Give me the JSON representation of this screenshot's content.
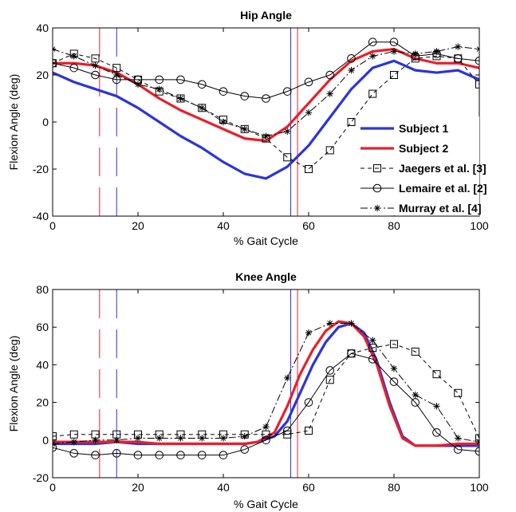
{
  "chart_data": [
    {
      "type": "line",
      "title": "Hip Angle",
      "xlabel": "% Gait Cycle",
      "ylabel": "Flexion Angle (deg)",
      "xlim": [
        0,
        100
      ],
      "ylim": [
        -40,
        40
      ],
      "xticks": [
        0,
        20,
        40,
        60,
        80,
        100
      ],
      "yticks": [
        -40,
        -20,
        0,
        20,
        40
      ],
      "vlines": [
        {
          "x": 11,
          "color": "#e8202a",
          "style": "dashed"
        },
        {
          "x": 15,
          "color": "#2b35d8",
          "style": "dashed"
        },
        {
          "x": 55.8,
          "color": "#2b35d8",
          "style": "solid"
        },
        {
          "x": 57.4,
          "color": "#e8202a",
          "style": "solid"
        }
      ],
      "series": [
        {
          "name": "Subject 1",
          "color": "#2b35d8",
          "marker": "none",
          "dash": "solid",
          "x": [
            0,
            5,
            10,
            15,
            20,
            25,
            30,
            35,
            40,
            45,
            50,
            55,
            60,
            65,
            70,
            75,
            80,
            85,
            90,
            95,
            100
          ],
          "y": [
            21,
            17,
            14,
            11,
            6,
            0,
            -6,
            -11,
            -17,
            -22,
            -24,
            -19,
            -10,
            2,
            14,
            23,
            26,
            22,
            21,
            22,
            18
          ]
        },
        {
          "name": "Subject 2",
          "color": "#e8202a",
          "marker": "none",
          "dash": "solid",
          "x": [
            0,
            5,
            10,
            15,
            20,
            25,
            30,
            35,
            40,
            45,
            50,
            55,
            60,
            65,
            70,
            75,
            80,
            85,
            90,
            95,
            100
          ],
          "y": [
            25,
            25,
            24,
            21,
            16,
            10,
            5,
            1,
            -3,
            -7,
            -8,
            -2,
            8,
            18,
            26,
            30,
            31,
            27,
            25,
            25,
            23
          ]
        },
        {
          "name": "Jaegers et al. [3]",
          "color": "#000000",
          "marker": "square",
          "dash": "dashed",
          "x": [
            0,
            5,
            10,
            15,
            20,
            25,
            30,
            35,
            40,
            45,
            50,
            55,
            60,
            65,
            70,
            75,
            80,
            85,
            90,
            95,
            100
          ],
          "y": [
            25,
            29,
            27,
            23,
            18,
            13,
            10,
            6,
            1,
            -3,
            -7,
            -15,
            -20,
            -12,
            0,
            12,
            20,
            27,
            28,
            27,
            16
          ]
        },
        {
          "name": "Lemaire et al. [2]",
          "color": "#000000",
          "marker": "circle",
          "dash": "solid",
          "x": [
            0,
            5,
            10,
            15,
            20,
            25,
            30,
            35,
            40,
            45,
            50,
            55,
            60,
            65,
            70,
            75,
            80,
            85,
            90,
            95,
            100
          ],
          "y": [
            25,
            23,
            20,
            18,
            18,
            18,
            18,
            16,
            13,
            11,
            10,
            13,
            17,
            20,
            27,
            34,
            34,
            28,
            29,
            27,
            26
          ]
        },
        {
          "name": "Murray et al. [4]",
          "color": "#000000",
          "marker": "star",
          "dash": "dashdot",
          "x": [
            0,
            5,
            10,
            15,
            20,
            25,
            30,
            35,
            40,
            45,
            50,
            55,
            60,
            65,
            70,
            75,
            80,
            85,
            90,
            95,
            100
          ],
          "y": [
            31,
            28,
            24,
            20,
            16,
            14,
            10,
            6,
            0,
            -3,
            -6,
            -4,
            4,
            12,
            22,
            28,
            30,
            29,
            30,
            32,
            31
          ]
        }
      ],
      "legend": {
        "placement": "lower-right",
        "entries": [
          "Subject 1",
          "Subject 2",
          "Jaegers et al. [3]",
          "Lemaire et al. [2]",
          "Murray et al. [4]"
        ]
      }
    },
    {
      "type": "line",
      "title": "Knee Angle",
      "xlabel": "% Gait Cycle",
      "ylabel": "Flexion Angle (deg)",
      "xlim": [
        0,
        100
      ],
      "ylim": [
        -20,
        80
      ],
      "xticks": [
        0,
        20,
        40,
        60,
        80,
        100
      ],
      "yticks": [
        -20,
        0,
        20,
        40,
        60,
        80
      ],
      "vlines": [
        {
          "x": 11,
          "color": "#e8202a",
          "style": "dashed"
        },
        {
          "x": 15,
          "color": "#2b35d8",
          "style": "dashed"
        },
        {
          "x": 55.8,
          "color": "#2b35d8",
          "style": "solid"
        },
        {
          "x": 57.4,
          "color": "#e8202a",
          "style": "solid"
        }
      ],
      "series": [
        {
          "name": "Subject 1",
          "color": "#2b35d8",
          "marker": "none",
          "dash": "solid",
          "x": [
            0,
            5,
            10,
            15,
            20,
            25,
            30,
            35,
            40,
            45,
            48,
            52,
            55,
            58,
            61,
            64,
            67,
            70,
            73,
            76,
            79,
            82,
            85,
            90,
            95,
            100
          ],
          "y": [
            -2,
            -2,
            -2,
            -1,
            -2,
            -2,
            -2,
            -2,
            -2,
            -2,
            -1,
            2,
            10,
            25,
            40,
            52,
            60,
            62,
            57,
            42,
            20,
            2,
            -3,
            -3,
            -3,
            -3
          ]
        },
        {
          "name": "Subject 2",
          "color": "#e8202a",
          "marker": "none",
          "dash": "solid",
          "x": [
            0,
            5,
            10,
            15,
            20,
            25,
            30,
            35,
            40,
            45,
            48,
            52,
            55,
            58,
            61,
            64,
            67,
            70,
            73,
            76,
            79,
            82,
            85,
            90,
            95,
            100
          ],
          "y": [
            -1,
            -1,
            -1,
            -1,
            -1,
            -2,
            -2,
            -2,
            -2,
            -2,
            -1,
            4,
            18,
            35,
            48,
            58,
            63,
            62,
            55,
            40,
            18,
            1,
            -3,
            -3,
            -2,
            -2
          ]
        },
        {
          "name": "Jaegers et al. [3]",
          "color": "#000000",
          "marker": "square",
          "dash": "dashed",
          "x": [
            0,
            5,
            10,
            15,
            20,
            25,
            30,
            35,
            40,
            45,
            50,
            55,
            60,
            65,
            70,
            75,
            80,
            85,
            90,
            95,
            100
          ],
          "y": [
            2,
            3,
            3,
            3,
            3,
            3,
            3,
            3,
            3,
            3,
            3,
            3,
            5,
            32,
            46,
            49,
            51,
            47,
            35,
            25,
            1
          ]
        },
        {
          "name": "Lemaire et al. [2]",
          "color": "#000000",
          "marker": "circle",
          "dash": "solid",
          "x": [
            0,
            5,
            10,
            15,
            20,
            25,
            30,
            35,
            40,
            45,
            50,
            55,
            60,
            65,
            70,
            75,
            80,
            85,
            90,
            95,
            100
          ],
          "y": [
            -4,
            -7,
            -8,
            -7,
            -8,
            -8,
            -8,
            -8,
            -8,
            -5,
            0,
            5,
            20,
            37,
            46,
            43,
            31,
            20,
            4,
            -5,
            -6
          ]
        },
        {
          "name": "Murray et al. [4]",
          "color": "#000000",
          "marker": "star",
          "dash": "dashdot",
          "x": [
            0,
            5,
            10,
            15,
            20,
            25,
            30,
            35,
            40,
            45,
            50,
            55,
            60,
            65,
            70,
            75,
            80,
            85,
            90,
            95,
            100
          ],
          "y": [
            -2,
            -1,
            0,
            0,
            1,
            1,
            1,
            1,
            1,
            2,
            7,
            33,
            57,
            62,
            62,
            53,
            38,
            24,
            18,
            1,
            -1
          ]
        }
      ]
    }
  ]
}
